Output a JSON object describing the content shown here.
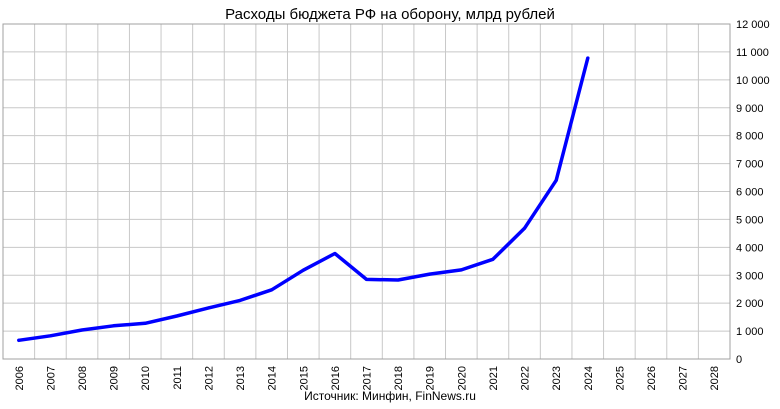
{
  "chart_data": {
    "type": "line",
    "title": "Расходы бюджета РФ на оборону, млрд рублей",
    "source": "Источник: Минфин, FinNews.ru",
    "xlabel": "",
    "ylabel": "",
    "categories": [
      "2006",
      "2007",
      "2008",
      "2009",
      "2010",
      "2011",
      "2012",
      "2013",
      "2014",
      "2015",
      "2016",
      "2017",
      "2018",
      "2019",
      "2020",
      "2021",
      "2022",
      "2023",
      "2024",
      "2025",
      "2026",
      "2027",
      "2028"
    ],
    "ylim": [
      0,
      12000
    ],
    "yticks": [
      0,
      1000,
      2000,
      3000,
      4000,
      5000,
      6000,
      7000,
      8000,
      9000,
      10000,
      11000,
      12000
    ],
    "ytick_labels": [
      "0",
      "1 000",
      "2 000",
      "3 000",
      "4 000",
      "5 000",
      "6 000",
      "7 000",
      "8 000",
      "9 000",
      "10 000",
      "11 000",
      "12 000"
    ],
    "y_axis_side": "right",
    "grid": true,
    "legend": "none",
    "series": [
      {
        "color": "#0000ff",
        "values": [
          670,
          830,
          1040,
          1190,
          1280,
          1540,
          1830,
          2100,
          2480,
          3180,
          3780,
          2850,
          2830,
          3040,
          3190,
          3570,
          4680,
          6400,
          10780,
          null,
          null,
          null,
          null
        ]
      }
    ]
  }
}
